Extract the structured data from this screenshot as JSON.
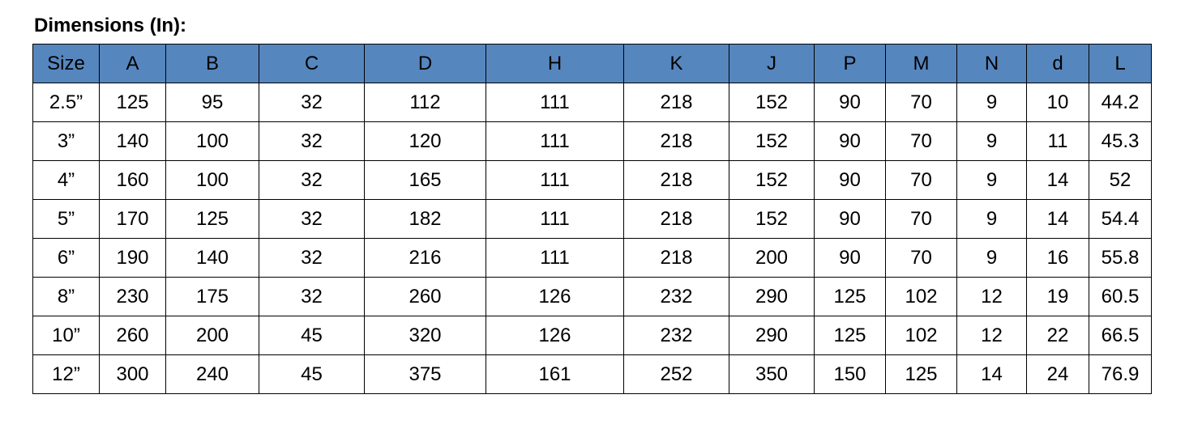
{
  "title": "Dimensions (In):",
  "table": {
    "header_bg": "#5686be",
    "columns": [
      {
        "label": "Size",
        "width": 82
      },
      {
        "label": "A",
        "width": 82
      },
      {
        "label": "B",
        "width": 115
      },
      {
        "label": "C",
        "width": 130
      },
      {
        "label": "D",
        "width": 150
      },
      {
        "label": "H",
        "width": 170
      },
      {
        "label": "K",
        "width": 130
      },
      {
        "label": "J",
        "width": 105
      },
      {
        "label": "P",
        "width": 88
      },
      {
        "label": "M",
        "width": 88
      },
      {
        "label": "N",
        "width": 86
      },
      {
        "label": "d",
        "width": 77
      },
      {
        "label": "L",
        "width": 77
      }
    ],
    "rows": [
      [
        "2.5”",
        "125",
        "95",
        "32",
        "112",
        "111",
        "218",
        "152",
        "90",
        "70",
        "9",
        "10",
        "44.2"
      ],
      [
        "3”",
        "140",
        "100",
        "32",
        "120",
        "111",
        "218",
        "152",
        "90",
        "70",
        "9",
        "11",
        "45.3"
      ],
      [
        "4”",
        "160",
        "100",
        "32",
        "165",
        "111",
        "218",
        "152",
        "90",
        "70",
        "9",
        "14",
        "52"
      ],
      [
        "5”",
        "170",
        "125",
        "32",
        "182",
        "111",
        "218",
        "152",
        "90",
        "70",
        "9",
        "14",
        "54.4"
      ],
      [
        "6”",
        "190",
        "140",
        "32",
        "216",
        "111",
        "218",
        "200",
        "90",
        "70",
        "9",
        "16",
        "55.8"
      ],
      [
        "8”",
        "230",
        "175",
        "32",
        "260",
        "126",
        "232",
        "290",
        "125",
        "102",
        "12",
        "19",
        "60.5"
      ],
      [
        "10”",
        "260",
        "200",
        "45",
        "320",
        "126",
        "232",
        "290",
        "125",
        "102",
        "12",
        "22",
        "66.5"
      ],
      [
        "12”",
        "300",
        "240",
        "45",
        "375",
        "161",
        "252",
        "350",
        "150",
        "125",
        "14",
        "24",
        "76.9"
      ]
    ]
  }
}
